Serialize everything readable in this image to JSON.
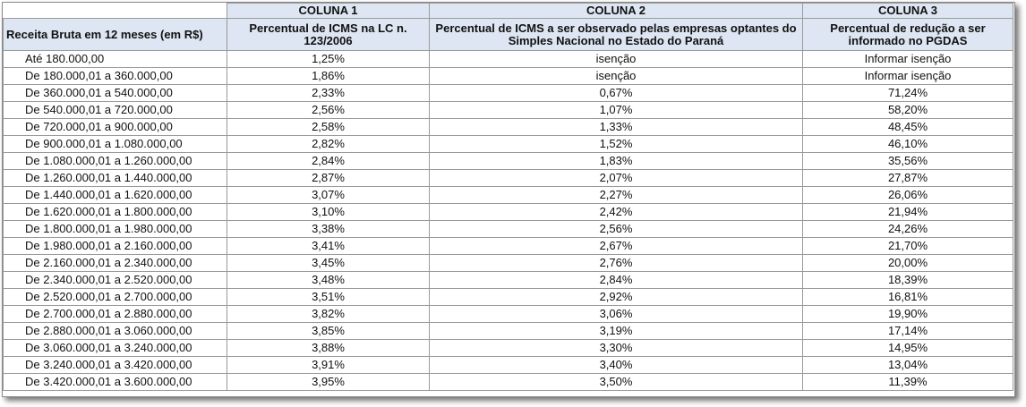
{
  "columns": {
    "col1_title": "COLUNA 1",
    "col2_title": "COLUNA 2",
    "col3_title": "COLUNA 3",
    "row_header": "Receita Bruta em 12 meses (em R$)",
    "col1_desc": "Percentual de ICMS na LC n. 123/2006",
    "col2_desc": "Percentual de ICMS a ser observado pelas empresas optantes do Simples Nacional no Estado do Paraná",
    "col3_desc": "Percentual de redução a ser informado no PGDAS"
  },
  "rows": [
    {
      "range": "Até 180.000,00",
      "c1": "1,25%",
      "c2": "isenção",
      "c3": "Informar isenção"
    },
    {
      "range": "De 180.000,01 a 360.000,00",
      "c1": "1,86%",
      "c2": "isenção",
      "c3": "Informar isenção"
    },
    {
      "range": "De 360.000,01 a 540.000,00",
      "c1": "2,33%",
      "c2": "0,67%",
      "c3": "71,24%"
    },
    {
      "range": "De 540.000,01 a 720.000,00",
      "c1": "2,56%",
      "c2": "1,07%",
      "c3": "58,20%"
    },
    {
      "range": "De 720.000,01 a 900.000,00",
      "c1": "2,58%",
      "c2": "1,33%",
      "c3": "48,45%"
    },
    {
      "range": "De 900.000,01 a 1.080.000,00",
      "c1": "2,82%",
      "c2": "1,52%",
      "c3": "46,10%"
    },
    {
      "range": "De 1.080.000,01 a 1.260.000,00",
      "c1": "2,84%",
      "c2": "1,83%",
      "c3": "35,56%"
    },
    {
      "range": "De 1.260.000,01 a 1.440.000,00",
      "c1": "2,87%",
      "c2": "2,07%",
      "c3": "27,87%"
    },
    {
      "range": "De 1.440.000,01 a 1.620.000,00",
      "c1": "3,07%",
      "c2": "2,27%",
      "c3": "26,06%"
    },
    {
      "range": "De 1.620.000,01 a 1.800.000,00",
      "c1": "3,10%",
      "c2": "2,42%",
      "c3": "21,94%"
    },
    {
      "range": "De 1.800.000,01 a 1.980.000,00",
      "c1": "3,38%",
      "c2": "2,56%",
      "c3": "24,26%"
    },
    {
      "range": "De 1.980.000,01 a 2.160.000,00",
      "c1": "3,41%",
      "c2": "2,67%",
      "c3": "21,70%"
    },
    {
      "range": "De 2.160.000,01 a 2.340.000,00",
      "c1": "3,45%",
      "c2": "2,76%",
      "c3": "20,00%"
    },
    {
      "range": "De 2.340.000,01 a 2.520.000,00",
      "c1": "3,48%",
      "c2": "2,84%",
      "c3": "18,39%"
    },
    {
      "range": "De 2.520.000,01 a 2.700.000,00",
      "c1": "3,51%",
      "c2": "2,92%",
      "c3": "16,81%"
    },
    {
      "range": "De 2.700.000,01 a 2.880.000,00",
      "c1": "3,82%",
      "c2": "3,06%",
      "c3": "19,90%"
    },
    {
      "range": "De 2.880.000,01 a 3.060.000,00",
      "c1": "3,85%",
      "c2": "3,19%",
      "c3": "17,14%"
    },
    {
      "range": "De 3.060.000,01 a 3.240.000,00",
      "c1": "3,88%",
      "c2": "3,30%",
      "c3": "14,95%"
    },
    {
      "range": "De 3.240.000,01 a 3.420.000,00",
      "c1": "3,91%",
      "c2": "3,40%",
      "c3": "13,04%"
    },
    {
      "range": "De 3.420.000,01 a 3.600.000,00",
      "c1": "3,95%",
      "c2": "3,50%",
      "c3": "11,39%"
    }
  ]
}
